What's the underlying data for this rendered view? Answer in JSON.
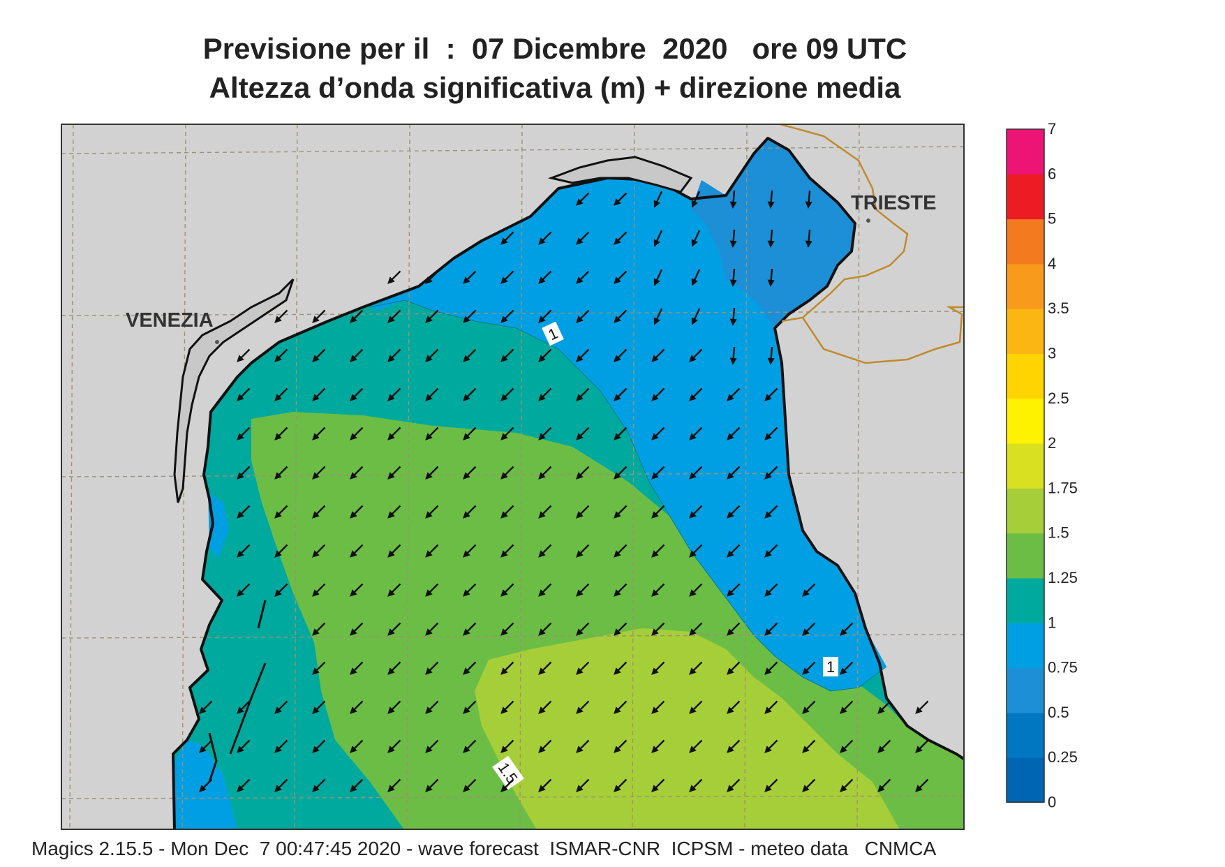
{
  "title": {
    "line1": "Previsione per il  :  07 Dicembre  2020   ore 09 UTC",
    "line2": "Altezza d’onda significativa (m) + direzione media"
  },
  "map": {
    "places": [
      "VENEZIA",
      "TRIESTE"
    ],
    "contour_labels": [
      "1",
      "1",
      "1.5"
    ],
    "arrow_direction": "north-west",
    "land_color": "#d2d2d3",
    "coast_color": "#111111",
    "border_color": "#c08a2a",
    "grid": true
  },
  "colorbar": {
    "labels": [
      "7",
      "6",
      "5",
      "4",
      "3.5",
      "3",
      "2.5",
      "2",
      "1.75",
      "1.5",
      "1.25",
      "1",
      "0.75",
      "0.5",
      "0.25",
      "0"
    ],
    "colors": [
      "#ec1475",
      "#ec1c24",
      "#f47a20",
      "#f89a1b",
      "#fbb614",
      "#ffd400",
      "#fff200",
      "#d9e021",
      "#a6ce39",
      "#6cbd45",
      "#00a99d",
      "#009fe3",
      "#1c8fd6",
      "#0077c0",
      "#0066b3"
    ]
  },
  "wave_classes": {
    "0.5-0.75": "#1c8fd6",
    "0.75-1": "#009fe3",
    "1-1.25": "#00a99d",
    "1.25-1.5": "#6cbd45",
    "1.5-1.75": "#a6ce39"
  },
  "footer": "Magics 2.15.5 - Mon Dec  7 00:47:45 2020 - wave forecast  ISMAR-CNR  ICPSM - meteo data   CNMCA"
}
